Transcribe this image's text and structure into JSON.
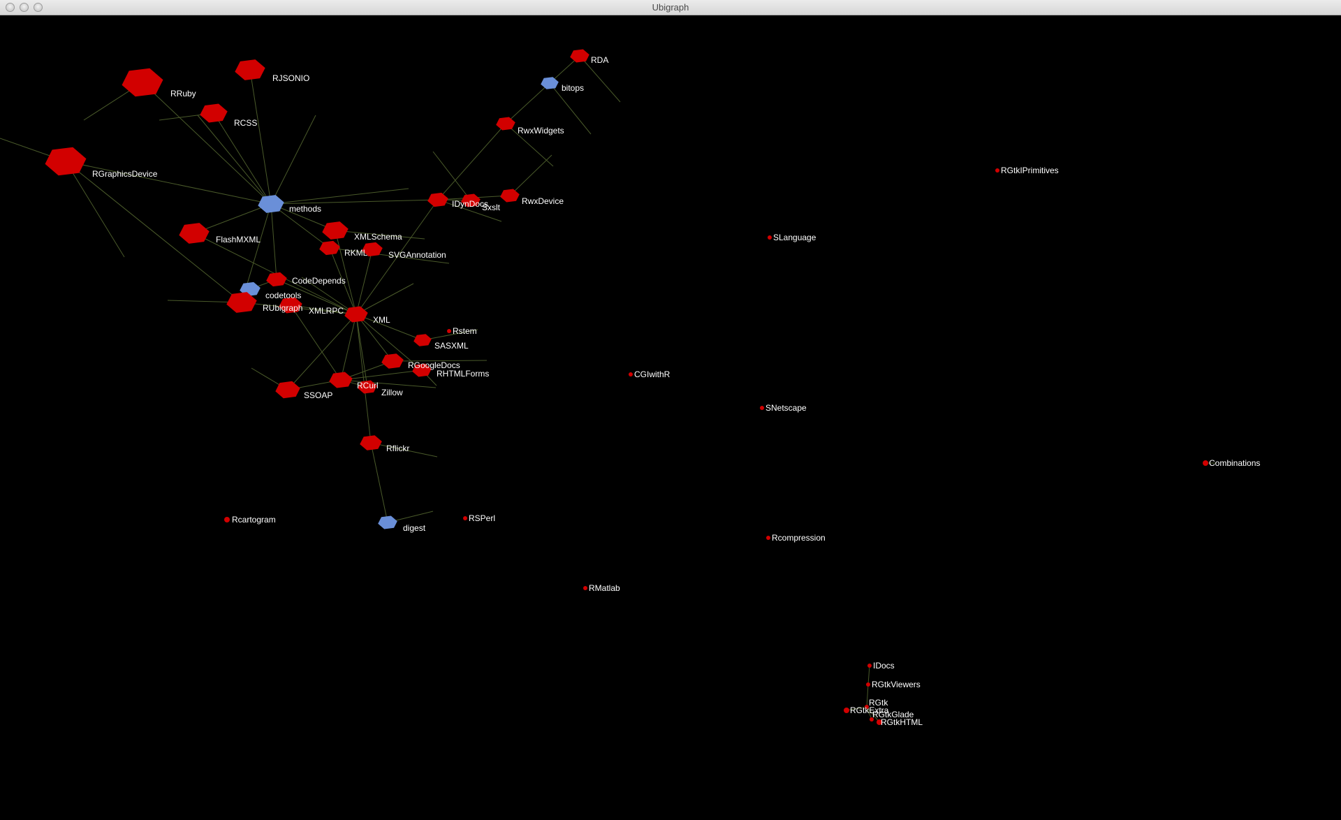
{
  "window": {
    "title": "Ubigraph"
  },
  "colors": {
    "background": "#000000",
    "node_red": "#d20000",
    "node_blue": "#6a8fd8",
    "edge": "#4a5a2a",
    "label": "#ffffff"
  },
  "graph": {
    "vertices": [
      {
        "id": "RRuby",
        "label": "RRuby",
        "color": "red"
      },
      {
        "id": "RJSONIO",
        "label": "RJSONIO",
        "color": "red"
      },
      {
        "id": "RCSS",
        "label": "RCSS",
        "color": "red"
      },
      {
        "id": "RGraphicsDevice",
        "label": "RGraphicsDevice",
        "color": "red"
      },
      {
        "id": "methods",
        "label": "methods",
        "color": "blue"
      },
      {
        "id": "FlashMXML",
        "label": "FlashMXML",
        "color": "red"
      },
      {
        "id": "XMLSchema",
        "label": "XMLSchema",
        "color": "red"
      },
      {
        "id": "RKML",
        "label": "RKML",
        "color": "red"
      },
      {
        "id": "SVGAnnotation",
        "label": "SVGAnnotation",
        "color": "red"
      },
      {
        "id": "CodeDepends",
        "label": "CodeDepends",
        "color": "red"
      },
      {
        "id": "codetools",
        "label": "codetools",
        "color": "blue"
      },
      {
        "id": "RUbigraph",
        "label": "RUbigraph",
        "color": "red"
      },
      {
        "id": "XMLRPC",
        "label": "XMLRPC",
        "color": "red"
      },
      {
        "id": "XML",
        "label": "XML",
        "color": "red"
      },
      {
        "id": "Rstem",
        "label": "Rstem",
        "color": "red"
      },
      {
        "id": "SASXML",
        "label": "SASXML",
        "color": "red"
      },
      {
        "id": "RGoogleDocs",
        "label": "RGoogleDocs",
        "color": "red"
      },
      {
        "id": "RHTMLForms",
        "label": "RHTMLForms",
        "color": "red"
      },
      {
        "id": "SSOAP",
        "label": "SSOAP",
        "color": "red"
      },
      {
        "id": "RCurl",
        "label": "RCurl",
        "color": "red"
      },
      {
        "id": "Zillow",
        "label": "Zillow",
        "color": "red"
      },
      {
        "id": "Rflickr",
        "label": "Rflickr",
        "color": "red"
      },
      {
        "id": "digest",
        "label": "digest",
        "color": "blue"
      },
      {
        "id": "RSPerl",
        "label": "RSPerl",
        "color": "red"
      },
      {
        "id": "Rcartogram",
        "label": "Rcartogram",
        "color": "red"
      },
      {
        "id": "RDA",
        "label": "RDA",
        "color": "red"
      },
      {
        "id": "bitops",
        "label": "bitops",
        "color": "blue"
      },
      {
        "id": "RwxWidgets",
        "label": "RwxWidgets",
        "color": "red"
      },
      {
        "id": "IDynDocs",
        "label": "IDynDocs",
        "color": "red"
      },
      {
        "id": "Sxslt",
        "label": "Sxslt",
        "color": "red"
      },
      {
        "id": "RwxDevice",
        "label": "RwxDevice",
        "color": "red"
      },
      {
        "id": "RGtkIPrimitives",
        "label": "RGtkIPrimitives",
        "color": "red"
      },
      {
        "id": "SLanguage",
        "label": "SLanguage",
        "color": "red"
      },
      {
        "id": "CGIwithR",
        "label": "CGIwithR",
        "color": "red"
      },
      {
        "id": "SNetscape",
        "label": "SNetscape",
        "color": "red"
      },
      {
        "id": "Combinations",
        "label": "Combinations",
        "color": "red"
      },
      {
        "id": "Rcompression",
        "label": "Rcompression",
        "color": "red"
      },
      {
        "id": "RMatlab",
        "label": "RMatlab",
        "color": "red"
      },
      {
        "id": "IDocs",
        "label": "IDocs",
        "color": "red"
      },
      {
        "id": "RGtkViewers",
        "label": "RGtkViewers",
        "color": "red"
      },
      {
        "id": "RGtk",
        "label": "RGtk",
        "color": "red"
      },
      {
        "id": "RGtkExtra",
        "label": "RGtkExtra",
        "color": "red"
      },
      {
        "id": "RGtkGlade",
        "label": "RGtkGlade",
        "color": "red"
      },
      {
        "id": "RGtkHTML",
        "label": "RGtkHTML",
        "color": "red"
      }
    ],
    "edges": [
      [
        "RRuby",
        "methods"
      ],
      [
        "RJSONIO",
        "methods"
      ],
      [
        "RCSS",
        "methods"
      ],
      [
        "RGraphicsDevice",
        "methods"
      ],
      [
        "FlashMXML",
        "methods"
      ],
      [
        "XMLSchema",
        "methods"
      ],
      [
        "RKML",
        "methods"
      ],
      [
        "CodeDepends",
        "methods"
      ],
      [
        "RUbigraph",
        "methods"
      ],
      [
        "IDynDocs",
        "methods"
      ],
      [
        "RGraphicsDevice",
        "RUbigraph"
      ],
      [
        "XMLSchema",
        "XML"
      ],
      [
        "RKML",
        "XML"
      ],
      [
        "SVGAnnotation",
        "XML"
      ],
      [
        "CodeDepends",
        "XML"
      ],
      [
        "CodeDepends",
        "codetools"
      ],
      [
        "RUbigraph",
        "XML"
      ],
      [
        "XMLRPC",
        "XML"
      ],
      [
        "XMLRPC",
        "RCurl"
      ],
      [
        "SASXML",
        "XML"
      ],
      [
        "RGoogleDocs",
        "XML"
      ],
      [
        "RGoogleDocs",
        "RCurl"
      ],
      [
        "RHTMLForms",
        "XML"
      ],
      [
        "RHTMLForms",
        "RCurl"
      ],
      [
        "SSOAP",
        "XML"
      ],
      [
        "SSOAP",
        "RCurl"
      ],
      [
        "Zillow",
        "XML"
      ],
      [
        "Zillow",
        "RCurl"
      ],
      [
        "Rflickr",
        "XML"
      ],
      [
        "Rflickr",
        "digest"
      ],
      [
        "IDynDocs",
        "XML"
      ],
      [
        "IDynDocs",
        "RwxWidgets"
      ],
      [
        "Sxslt",
        "IDynDocs"
      ],
      [
        "RwxDevice",
        "IDynDocs"
      ],
      [
        "RwxWidgets",
        "bitops"
      ],
      [
        "RDA",
        "bitops"
      ],
      [
        "RCurl",
        "XML"
      ],
      [
        "FlashMXML",
        "XML"
      ],
      [
        "IDocs",
        "RGtkViewers"
      ],
      [
        "RGtkViewers",
        "RGtk"
      ],
      [
        "RGtk",
        "RGtkExtra"
      ],
      [
        "RGtk",
        "RGtkGlade"
      ],
      [
        "RGtk",
        "RGtkHTML"
      ]
    ]
  }
}
